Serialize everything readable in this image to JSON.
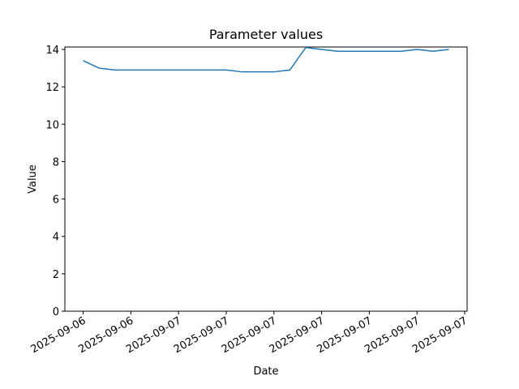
{
  "chart_data": {
    "type": "line",
    "title": "Parameter values",
    "xlabel": "Date",
    "ylabel": "Value",
    "x": [
      0,
      1,
      2,
      3,
      4,
      5,
      6,
      7,
      8,
      9,
      10,
      11,
      12,
      13,
      14,
      15,
      16,
      17,
      18,
      19,
      20,
      21,
      22,
      23
    ],
    "series": [
      {
        "color": "#1f77b4",
        "values": [
          13.4,
          13.0,
          12.9,
          12.9,
          12.9,
          12.9,
          12.9,
          12.9,
          12.9,
          12.9,
          12.8,
          12.8,
          12.8,
          12.9,
          14.1,
          14.0,
          13.9,
          13.9,
          13.9,
          13.9,
          13.9,
          14.0,
          13.9,
          14.0
        ]
      }
    ],
    "xlim": [
      -1.15,
      24.15
    ],
    "xticks": [
      {
        "value": 0,
        "label": "2025-09-06"
      },
      {
        "value": 3,
        "label": "2025-09-06"
      },
      {
        "value": 6,
        "label": "2025-09-07"
      },
      {
        "value": 9,
        "label": "2025-09-07"
      },
      {
        "value": 12,
        "label": "2025-09-07"
      },
      {
        "value": 15,
        "label": "2025-09-07"
      },
      {
        "value": 18,
        "label": "2025-09-07"
      },
      {
        "value": 21,
        "label": "2025-09-07"
      },
      {
        "value": 24,
        "label": "2025-09-07"
      }
    ],
    "ylim": [
      0,
      14.13
    ],
    "yticks": [
      0,
      2,
      4,
      6,
      8,
      10,
      12,
      14
    ],
    "grid": false
  }
}
